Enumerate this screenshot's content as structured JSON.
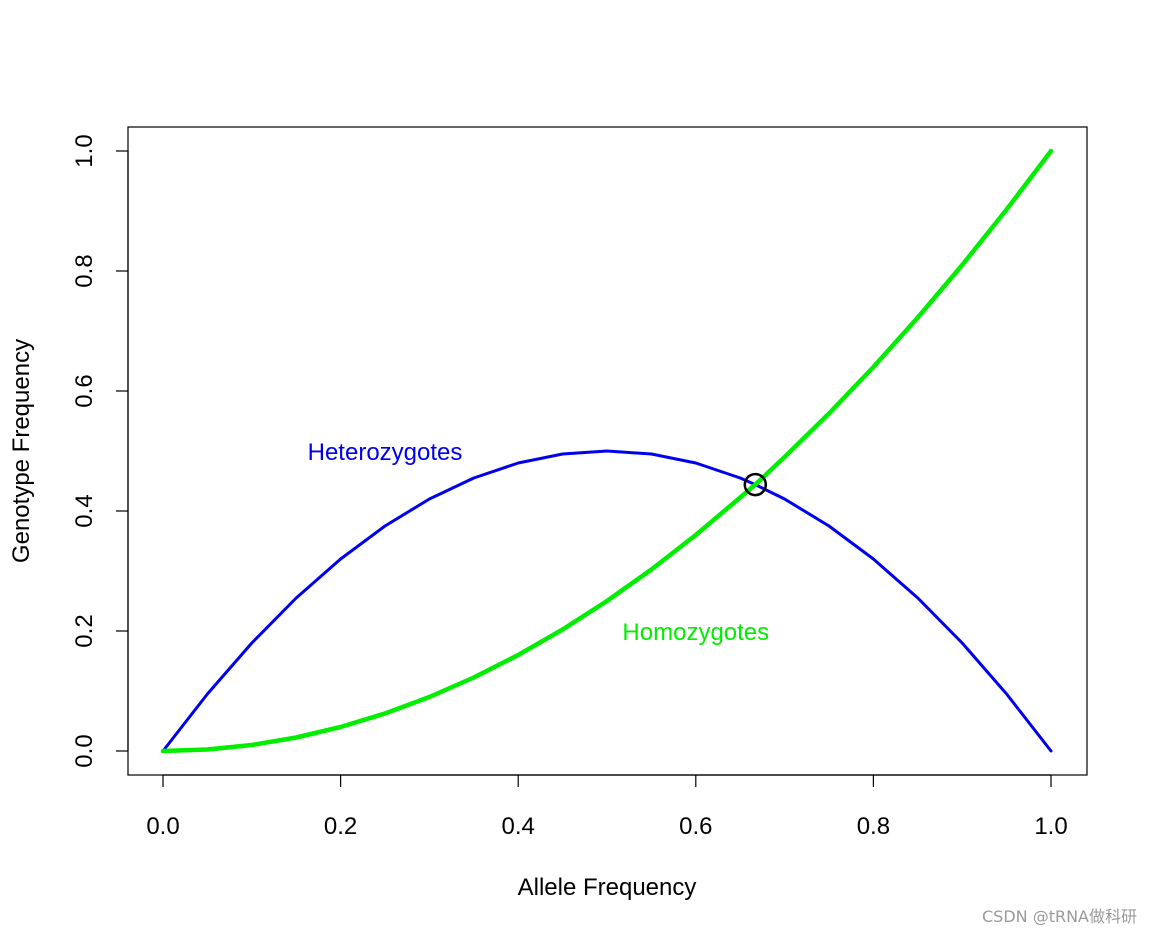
{
  "chart_data": {
    "type": "line",
    "title": "",
    "xlabel": "Allele Frequency",
    "ylabel": "Genotype Frequency",
    "xlim": [
      0,
      1
    ],
    "ylim": [
      0,
      1
    ],
    "xticks": [
      "0.0",
      "0.2",
      "0.4",
      "0.6",
      "0.8",
      "1.0"
    ],
    "yticks": [
      "0.0",
      "0.2",
      "0.4",
      "0.6",
      "0.8",
      "1.0"
    ],
    "grid": false,
    "legend": "none",
    "x": [
      0.0,
      0.05,
      0.1,
      0.15,
      0.2,
      0.25,
      0.3,
      0.35,
      0.4,
      0.45,
      0.5,
      0.55,
      0.6,
      0.65,
      0.667,
      0.7,
      0.75,
      0.8,
      0.85,
      0.9,
      0.95,
      1.0
    ],
    "series": [
      {
        "label": "Heterozygotes",
        "color": "#0000ee",
        "values": [
          0.0,
          0.095,
          0.18,
          0.255,
          0.32,
          0.375,
          0.42,
          0.455,
          0.48,
          0.495,
          0.5,
          0.495,
          0.48,
          0.455,
          0.444,
          0.42,
          0.375,
          0.32,
          0.255,
          0.18,
          0.095,
          0.0
        ]
      },
      {
        "label": "Homozygotes",
        "color": "#00ee00",
        "values": [
          0.0,
          0.0025,
          0.01,
          0.0225,
          0.04,
          0.0625,
          0.09,
          0.1225,
          0.16,
          0.2025,
          0.25,
          0.3025,
          0.36,
          0.4225,
          0.444,
          0.49,
          0.5625,
          0.64,
          0.7225,
          0.81,
          0.9025,
          1.0
        ]
      }
    ],
    "annotations": [
      {
        "text": "Heterozygotes",
        "x": 0.25,
        "y": 0.5,
        "color": "#0000ee"
      },
      {
        "text": "Homozygotes",
        "x": 0.6,
        "y": 0.2,
        "color": "#00ee00"
      }
    ],
    "intersection_marker": {
      "x": 0.667,
      "y": 0.444,
      "shape": "open-circle",
      "color": "#000000"
    }
  },
  "watermark": "CSDN @tRNA做科研"
}
